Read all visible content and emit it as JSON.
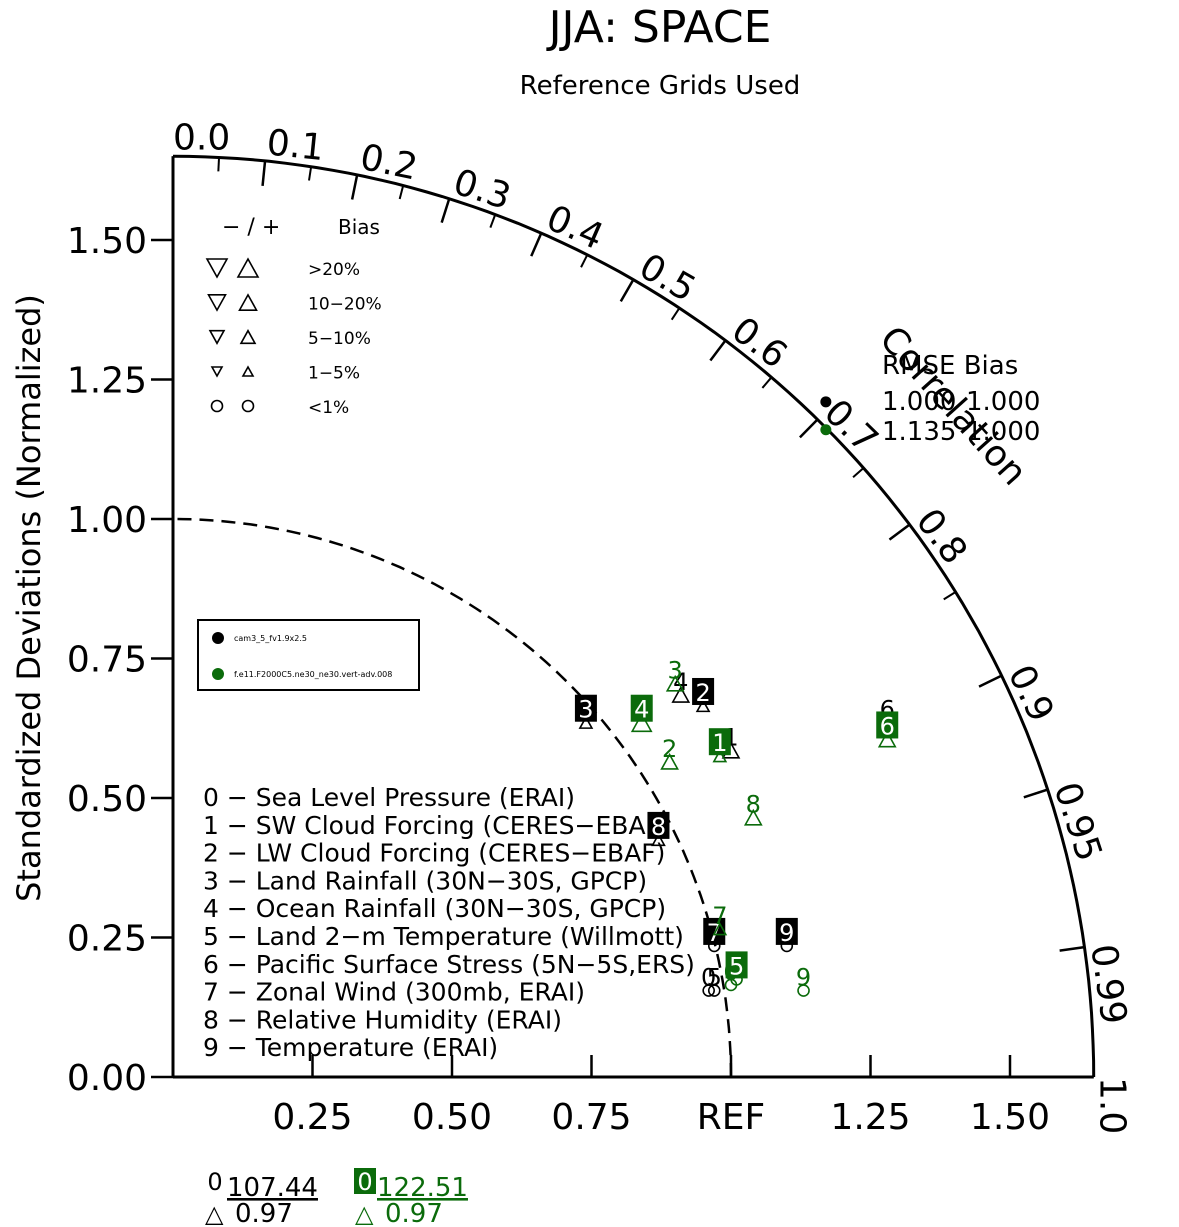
{
  "chart_data": {
    "type": "scatter",
    "chart_kind": "taylor-diagram",
    "title": "JJA: SPACE",
    "subtitle": "Reference Grids Used",
    "ylabel": "Standardized Deviations (Normalized)",
    "arc_label": "Correlation",
    "ref_label": "REF",
    "sd_range": [
      0,
      1.65
    ],
    "reference_arc": 1.0,
    "x_ticks": [
      "0.25",
      "0.50",
      "0.75",
      "REF",
      "1.25",
      "1.50"
    ],
    "x_tick_values": [
      0.25,
      0.5,
      0.75,
      1.0,
      1.25,
      1.5
    ],
    "y_ticks": [
      "0.00",
      "0.25",
      "0.50",
      "0.75",
      "1.00",
      "1.25",
      "1.50"
    ],
    "y_tick_values": [
      0,
      0.25,
      0.5,
      0.75,
      1.0,
      1.25,
      1.5
    ],
    "corr_ticks": [
      "0.0",
      "0.1",
      "0.2",
      "0.3",
      "0.4",
      "0.5",
      "0.6",
      "0.7",
      "0.8",
      "0.9",
      "0.95",
      "0.99",
      "1.0"
    ],
    "corr_tick_values": [
      0,
      0.1,
      0.2,
      0.3,
      0.4,
      0.5,
      0.6,
      0.7,
      0.8,
      0.9,
      0.95,
      0.99,
      1.0
    ],
    "colors": {
      "cam3": "#000000",
      "f11": "#0b6b0b",
      "axis": "#000000"
    },
    "bias_legend": {
      "header_symbols": "− / +",
      "header_label": "Bias",
      "rows": [
        {
          "label": ">20%",
          "shape": "triangle",
          "scale": 1.0
        },
        {
          "label": "10−20%",
          "shape": "triangle",
          "scale": 0.85
        },
        {
          "label": "5−10%",
          "shape": "triangle",
          "scale": 0.7
        },
        {
          "label": "1−5%",
          "shape": "triangle",
          "scale": 0.5
        },
        {
          "label": "<1%",
          "shape": "circle",
          "scale": 0.55
        }
      ]
    },
    "case_legend": [
      {
        "name": "cam3_5_fv1.9x2.5",
        "color": "#000000"
      },
      {
        "name": "f.e11.F2000C5.ne30_ne30.vert-adv.008",
        "color": "#0b6b0b"
      }
    ],
    "rmse_bias_table": {
      "header": "RMSE  Bias",
      "rows": [
        {
          "rmse": "1.000",
          "bias": "1.000",
          "color": "#000000"
        },
        {
          "rmse": "1.135",
          "bias": "1.000",
          "color": "#0b6b0b"
        }
      ]
    },
    "variables": [
      {
        "id": "0",
        "label": "0 − Sea Level Pressure (ERAI)"
      },
      {
        "id": "1",
        "label": "1 − SW Cloud Forcing (CERES−EBAF)"
      },
      {
        "id": "2",
        "label": "2 − LW Cloud Forcing (CERES−EBAF)"
      },
      {
        "id": "3",
        "label": "3 − Land Rainfall (30N−30S, GPCP)"
      },
      {
        "id": "4",
        "label": "4 − Ocean Rainfall (30N−30S, GPCP)"
      },
      {
        "id": "5",
        "label": "5 − Land 2−m Temperature (Willmott)"
      },
      {
        "id": "6",
        "label": "6 − Pacific Surface Stress (5N−5S,ERS)"
      },
      {
        "id": "7",
        "label": "7 − Zonal Wind (300mb, ERAI)"
      },
      {
        "id": "8",
        "label": "8 − Relative Humidity (ERAI)"
      },
      {
        "id": "9",
        "label": "9 − Temperature (ERAI)"
      }
    ],
    "series": [
      {
        "name": "cam3_5_fv1.9x2.5",
        "color": "#000000",
        "points": [
          {
            "id": "0",
            "x": 0.96,
            "y": 0.18,
            "bias": "<1%"
          },
          {
            "id": "1",
            "x": 1.0,
            "y": 0.61,
            "bias": "+ 5-10%"
          },
          {
            "id": "2",
            "x": 0.95,
            "y": 0.69,
            "bias": "+ 1-5%"
          },
          {
            "id": "3",
            "x": 0.74,
            "y": 0.66,
            "bias": "+ 1-5%"
          },
          {
            "id": "4",
            "x": 0.91,
            "y": 0.71,
            "bias": "+ 5-10%"
          },
          {
            "id": "5",
            "x": 0.97,
            "y": 0.18,
            "bias": "<1%"
          },
          {
            "id": "6",
            "x": 1.28,
            "y": 0.66,
            "bias": "+ 5-10%"
          },
          {
            "id": "7",
            "x": 0.97,
            "y": 0.26,
            "bias": "<1%"
          },
          {
            "id": "8",
            "x": 0.87,
            "y": 0.45,
            "bias": "+ 1-5%"
          },
          {
            "id": "9",
            "x": 1.1,
            "y": 0.26,
            "bias": "<1%"
          }
        ]
      },
      {
        "name": "f.e11.F2000C5.ne30_ne30.vert-adv.008",
        "color": "#0b6b0b",
        "points": [
          {
            "id": "0",
            "x": 1.0,
            "y": 0.19,
            "bias": "<1%"
          },
          {
            "id": "1",
            "x": 0.98,
            "y": 0.6,
            "bias": "+ 1-5%"
          },
          {
            "id": "2",
            "x": 0.89,
            "y": 0.59,
            "bias": "+ 5-10%"
          },
          {
            "id": "3",
            "x": 0.9,
            "y": 0.73,
            "bias": "+ 5-10%"
          },
          {
            "id": "4",
            "x": 0.84,
            "y": 0.66,
            "bias": "+ 10-20%"
          },
          {
            "id": "5",
            "x": 1.01,
            "y": 0.2,
            "bias": "<1%"
          },
          {
            "id": "6",
            "x": 1.28,
            "y": 0.63,
            "bias": "+ 5-10%"
          },
          {
            "id": "7",
            "x": 0.98,
            "y": 0.29,
            "bias": "+ 1-5%"
          },
          {
            "id": "8",
            "x": 1.04,
            "y": 0.49,
            "bias": "+ 5-10%"
          },
          {
            "id": "9",
            "x": 1.13,
            "y": 0.18,
            "bias": "<1%"
          }
        ]
      }
    ],
    "model_markers": [
      {
        "series": "cam3_5_fv1.9x2.5",
        "x": 1.17,
        "y": 1.21,
        "color": "#000000"
      },
      {
        "series": "f.e11.F2000C5.ne30_ne30.vert-adv.008",
        "x": 1.17,
        "y": 1.16,
        "color": "#0b6b0b"
      }
    ],
    "summary": [
      {
        "marker": "0",
        "value": "107.44",
        "symbol": "△",
        "corr": "0.97",
        "color": "#000000",
        "boxed": false
      },
      {
        "marker": "0",
        "value": "122.51",
        "symbol": "△",
        "corr": "0.97",
        "color": "#0b6b0b",
        "boxed": true
      }
    ]
  }
}
